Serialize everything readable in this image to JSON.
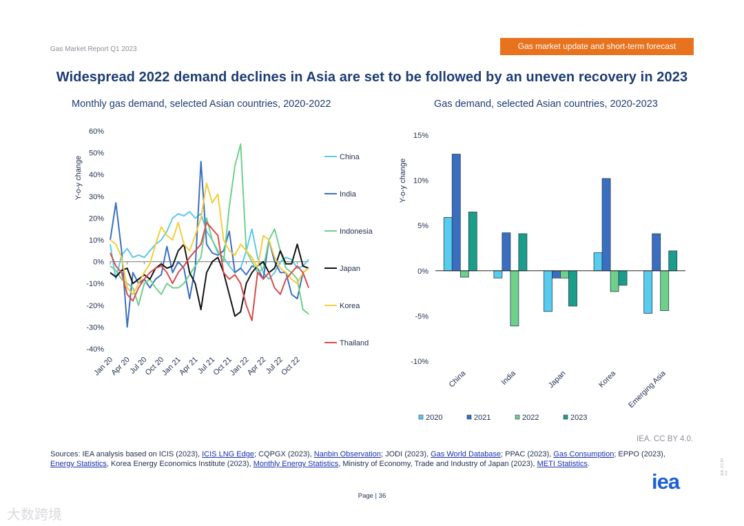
{
  "header": {
    "report_name": "Gas Market Report Q1 2023",
    "section_badge": "Gas market update and short-term forecast",
    "badge_color": "#e8731e"
  },
  "title": "Widespread 2022 demand declines in Asia are set to be followed by an uneven recovery in 2023",
  "chart_data": [
    {
      "type": "line",
      "title": "Monthly gas demand, selected Asian countries, 2020-2022",
      "ylabel": "Y-o-y change",
      "ylim": [
        -40,
        60
      ],
      "y_ticks": [
        "60%",
        "50%",
        "40%",
        "30%",
        "20%",
        "10%",
        "0%",
        "-10%",
        "-20%",
        "-30%",
        "-40%"
      ],
      "x": [
        "Jan 20",
        "Feb 20",
        "Mar 20",
        "Apr 20",
        "May 20",
        "Jun 20",
        "Jul 20",
        "Aug 20",
        "Sep 20",
        "Oct 20",
        "Nov 20",
        "Dec 20",
        "Jan 21",
        "Feb 21",
        "Mar 21",
        "Apr 21",
        "May 21",
        "Jun 21",
        "Jul 21",
        "Aug 21",
        "Sep 21",
        "Oct 21",
        "Nov 21",
        "Dec 21",
        "Jan 22",
        "Feb 22",
        "Mar 22",
        "Apr 22",
        "May 22",
        "Jun 22",
        "Jul 22",
        "Aug 22",
        "Sep 22",
        "Oct 22",
        "Nov 22",
        "Dec 22"
      ],
      "x_tick_labels": [
        "Jan 20",
        "Apr 20",
        "Jul 20",
        "Oct 20",
        "Jan 21",
        "Apr 21",
        "Jul 21",
        "Oct 21",
        "Jan 22",
        "Apr 22",
        "Jul 22",
        "Oct 22"
      ],
      "series": [
        {
          "name": "China",
          "color": "#5bc8ec",
          "values": [
            8,
            -8,
            3,
            6,
            2,
            3,
            2,
            5,
            8,
            10,
            14,
            20,
            22,
            21,
            23,
            20,
            22,
            14,
            10,
            4,
            2,
            -2,
            -5,
            -3,
            5,
            15,
            2,
            -5,
            -8,
            -5,
            0,
            2,
            1,
            -3,
            -2,
            1
          ]
        },
        {
          "name": "India",
          "color": "#3a6fc0",
          "values": [
            10,
            27,
            5,
            -30,
            -5,
            -10,
            -8,
            -12,
            -8,
            -6,
            7,
            -5,
            0,
            -3,
            -17,
            -3,
            46,
            8,
            4,
            3,
            5,
            14,
            -5,
            -3,
            -6,
            -2,
            -3,
            -8,
            10,
            0,
            -5,
            -5,
            -15,
            -17,
            -5,
            -3
          ]
        },
        {
          "name": "Indonesia",
          "color": "#6ed08a",
          "values": [
            -2,
            -4,
            -8,
            -10,
            -12,
            -20,
            -10,
            -8,
            -12,
            -15,
            -10,
            -12,
            -12,
            -10,
            -6,
            -2,
            2,
            20,
            10,
            5,
            0,
            25,
            44,
            54,
            5,
            0,
            -5,
            -3,
            10,
            15,
            5,
            -3,
            -5,
            -8,
            -22,
            -24
          ]
        },
        {
          "name": "Japan",
          "color": "#111111",
          "values": [
            -5,
            -7,
            -4,
            -3,
            -10,
            -8,
            -6,
            -8,
            -3,
            -1,
            -3,
            -2,
            5,
            8,
            -5,
            -10,
            -22,
            -5,
            0,
            2,
            -5,
            -15,
            -25,
            -23,
            -10,
            -5,
            -2,
            0,
            -5,
            -3,
            5,
            -1,
            -1,
            8,
            -2,
            -3
          ]
        },
        {
          "name": "Korea",
          "color": "#f6cc3c",
          "values": [
            10,
            8,
            2,
            -12,
            -15,
            -10,
            -5,
            -1,
            8,
            16,
            12,
            10,
            18,
            8,
            5,
            12,
            20,
            36,
            27,
            31,
            10,
            5,
            3,
            8,
            5,
            2,
            -3,
            12,
            10,
            2,
            -3,
            -5,
            -8,
            -10,
            -5,
            -3
          ]
        },
        {
          "name": "Thailand",
          "color": "#d84b4b",
          "values": [
            4,
            -2,
            -5,
            -15,
            -18,
            -12,
            -8,
            -5,
            -3,
            -2,
            -5,
            -10,
            -5,
            -2,
            2,
            5,
            8,
            18,
            15,
            12,
            -5,
            -8,
            -6,
            -10,
            -20,
            -27,
            -5,
            -8,
            -5,
            -12,
            -15,
            -8,
            -5,
            -2,
            -5,
            -12
          ]
        }
      ]
    },
    {
      "type": "bar",
      "title": "Gas demand, selected Asian countries, 2020-2023",
      "ylabel": "Y-o-y change",
      "ylim": [
        -10,
        15
      ],
      "y_ticks": [
        "15%",
        "10%",
        "5%",
        "0%",
        "-5%",
        "-10%"
      ],
      "categories": [
        "China",
        "India",
        "Japan",
        "Korea",
        "Emerging Asia"
      ],
      "series": [
        {
          "name": "2020",
          "color": "#57ccee",
          "values": [
            5.9,
            -0.8,
            -4.5,
            2.0,
            -4.7
          ]
        },
        {
          "name": "2021",
          "color": "#3a6fc0",
          "values": [
            12.9,
            4.2,
            -0.8,
            10.2,
            4.1
          ]
        },
        {
          "name": "2022",
          "color": "#6ed08a",
          "values": [
            -0.7,
            -6.1,
            -0.8,
            -2.3,
            -4.4
          ]
        },
        {
          "name": "2023",
          "color": "#1a9e8a",
          "values": [
            6.5,
            4.1,
            -3.9,
            -1.6,
            2.2
          ]
        }
      ]
    }
  ],
  "credit": "IEA. CC BY 4.0.",
  "sources": [
    {
      "text": "Sources: IEA analysis based on ICIS (2023), ",
      "link": false
    },
    {
      "text": "ICIS LNG Edge",
      "link": true
    },
    {
      "text": "; CQPGX (2023), ",
      "link": false
    },
    {
      "text": "Nanbin Observation",
      "link": true
    },
    {
      "text": "; JODI (2023), ",
      "link": false
    },
    {
      "text": "Gas World Database",
      "link": true
    },
    {
      "text": "; PPAC (2023), ",
      "link": false
    },
    {
      "text": "Gas Consumption",
      "link": true
    },
    {
      "text": "; EPPO (2023), ",
      "link": false
    },
    {
      "text": "Energy Statistics",
      "link": true
    },
    {
      "text": ", Korea Energy Economics Institute (2023), ",
      "link": false
    },
    {
      "text": "Monthly Energy Statistics",
      "link": true
    },
    {
      "text": ", Ministry of Economy, Trade and Industry of Japan (2023), ",
      "link": false
    },
    {
      "text": "METI Statistics",
      "link": true
    },
    {
      "text": ".",
      "link": false
    }
  ],
  "logo_text": "iea",
  "page_label": "Page | 36",
  "watermark": "大数跨境",
  "side_mark": "IEA. CC BY 4.0"
}
